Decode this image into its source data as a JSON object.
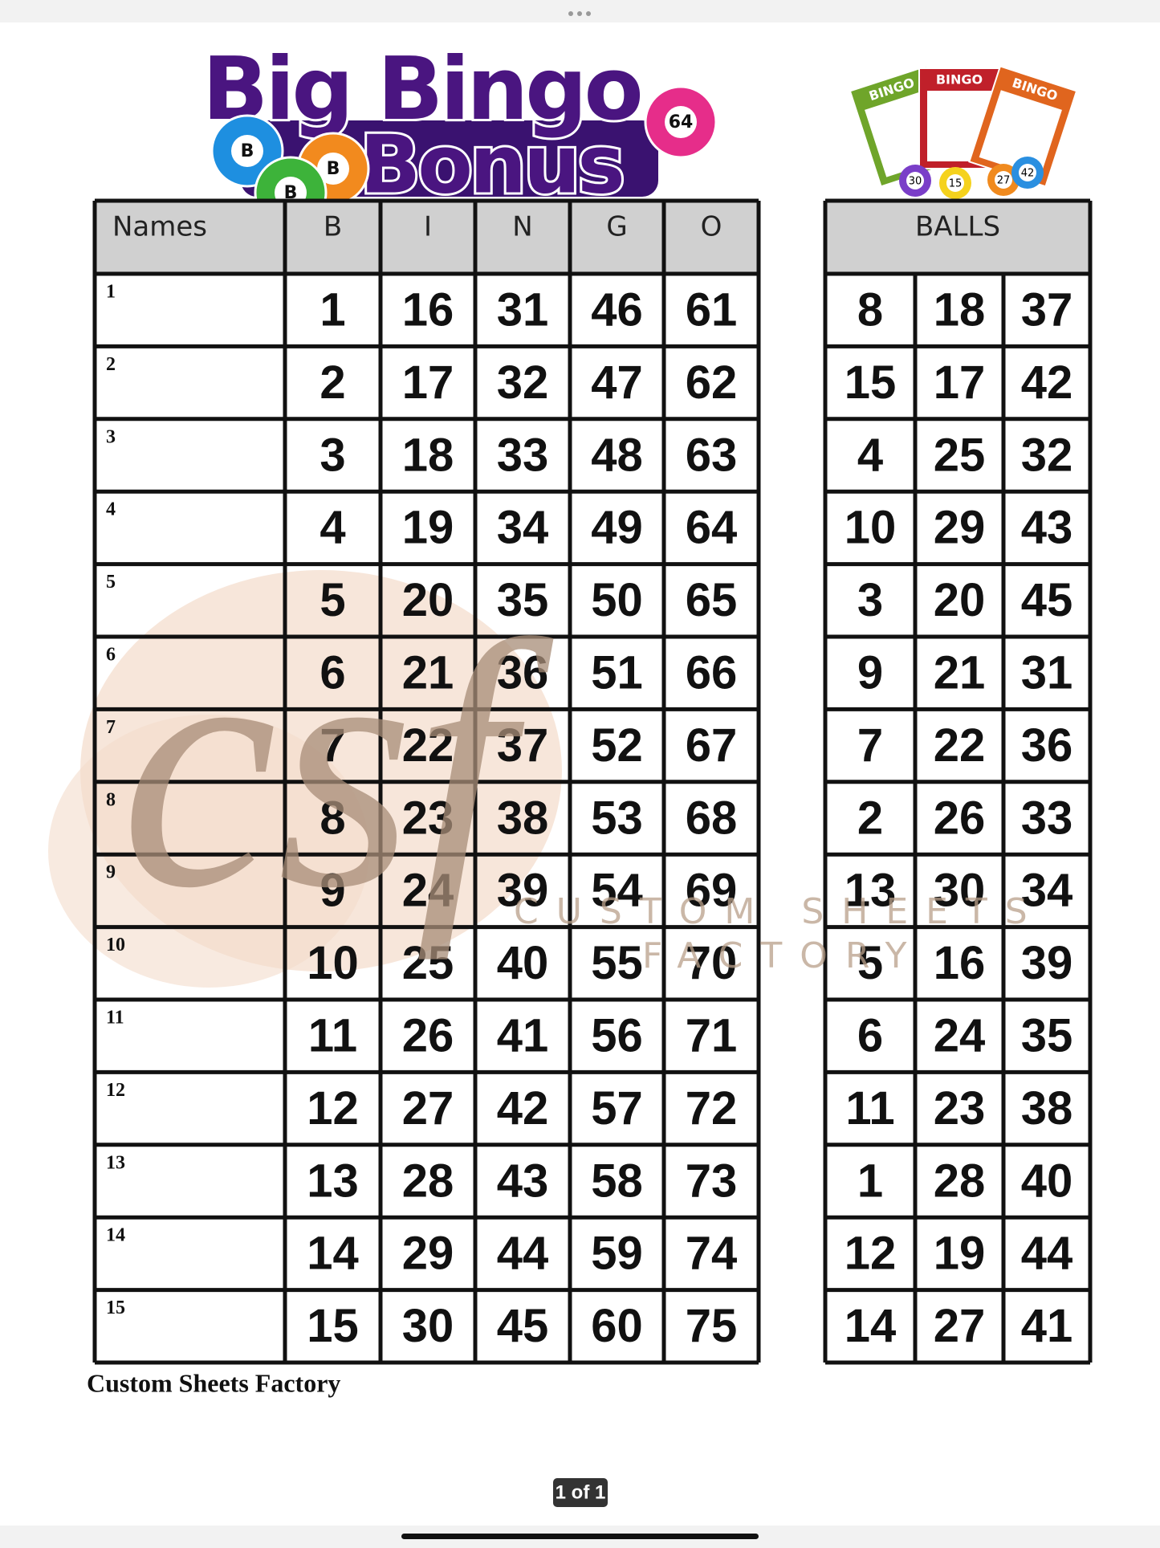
{
  "logo": {
    "words": [
      "Big",
      "Bingo",
      "Bonus"
    ],
    "balls": [
      "B",
      "B",
      "B",
      "64"
    ]
  },
  "illustration": {
    "card_titles": [
      "BINGO",
      "BINGO",
      "BINGO"
    ],
    "ball_numbers": [
      "30",
      "15",
      "27",
      "42"
    ]
  },
  "table": {
    "header": [
      "Names",
      "B",
      "I",
      "N",
      "G",
      "O"
    ],
    "rows": [
      {
        "label": "1",
        "cells": [
          1,
          16,
          31,
          46,
          61
        ]
      },
      {
        "label": "2",
        "cells": [
          2,
          17,
          32,
          47,
          62
        ]
      },
      {
        "label": "3",
        "cells": [
          3,
          18,
          33,
          48,
          63
        ]
      },
      {
        "label": "4",
        "cells": [
          4,
          19,
          34,
          49,
          64
        ]
      },
      {
        "label": "5",
        "cells": [
          5,
          20,
          35,
          50,
          65
        ]
      },
      {
        "label": "6",
        "cells": [
          6,
          21,
          36,
          51,
          66
        ]
      },
      {
        "label": "7",
        "cells": [
          7,
          22,
          37,
          52,
          67
        ]
      },
      {
        "label": "8",
        "cells": [
          8,
          23,
          38,
          53,
          68
        ]
      },
      {
        "label": "9",
        "cells": [
          9,
          24,
          39,
          54,
          69
        ]
      },
      {
        "label": "10",
        "cells": [
          10,
          25,
          40,
          55,
          70
        ]
      },
      {
        "label": "11",
        "cells": [
          11,
          26,
          41,
          56,
          71
        ]
      },
      {
        "label": "12",
        "cells": [
          12,
          27,
          42,
          57,
          72
        ]
      },
      {
        "label": "13",
        "cells": [
          13,
          28,
          43,
          58,
          73
        ]
      },
      {
        "label": "14",
        "cells": [
          14,
          29,
          44,
          59,
          74
        ]
      },
      {
        "label": "15",
        "cells": [
          15,
          30,
          45,
          60,
          75
        ]
      }
    ]
  },
  "balls": {
    "header": "BALLS",
    "rows": [
      [
        8,
        18,
        37
      ],
      [
        15,
        17,
        42
      ],
      [
        4,
        25,
        32
      ],
      [
        10,
        29,
        43
      ],
      [
        3,
        20,
        45
      ],
      [
        9,
        21,
        31
      ],
      [
        7,
        22,
        36
      ],
      [
        2,
        26,
        33
      ],
      [
        13,
        30,
        34
      ],
      [
        5,
        16,
        39
      ],
      [
        6,
        24,
        35
      ],
      [
        11,
        23,
        38
      ],
      [
        1,
        28,
        40
      ],
      [
        12,
        19,
        44
      ],
      [
        14,
        27,
        41
      ]
    ]
  },
  "watermark": {
    "monogram": "csf",
    "line1": "CUSTOM SHEETS",
    "line2": "FACTORY"
  },
  "footer": "Custom Sheets Factory",
  "page_indicator": "1 of 1"
}
